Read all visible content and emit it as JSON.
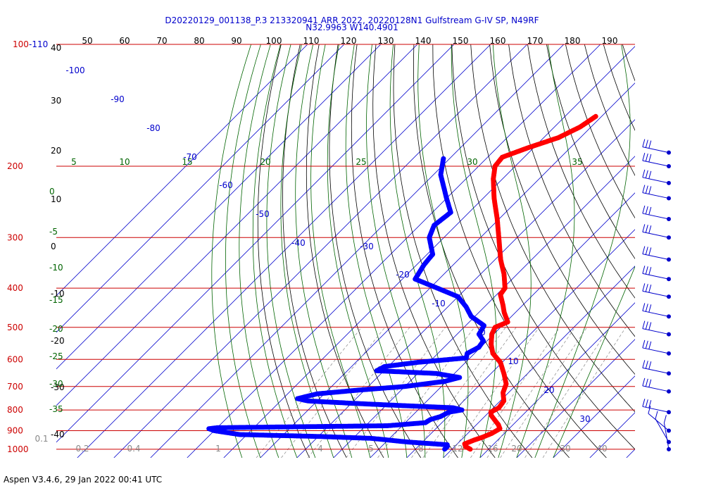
{
  "header": {
    "title_line1": "D20220129_001138_P.3 213320941 ARR 2022, 20220128N1 Gulfstream G-IV SP, N49RF",
    "title_line2": "N32.9963 W140.4901"
  },
  "footer": {
    "text": "Aspen V3.4.6, 29 Jan 2022  00:41 UTC"
  },
  "colors": {
    "isobar": "#cc0000",
    "temperature": "#ff0000",
    "dewpoint": "#0000ff",
    "isotherm": "#0000cc",
    "dry_adiabat": "#000000",
    "moist_adiabat": "#006400",
    "mixing_ratio": "#888888",
    "wind_barb": "#0000cc"
  },
  "chart_data": {
    "type": "skew-t",
    "pressure_levels": [
      {
        "value": 100,
        "label": "100"
      },
      {
        "value": 200,
        "label": "200"
      },
      {
        "value": 300,
        "label": "300"
      },
      {
        "value": 400,
        "label": "400"
      },
      {
        "value": 500,
        "label": "500"
      },
      {
        "value": 600,
        "label": "600"
      },
      {
        "value": 700,
        "label": "700"
      },
      {
        "value": 800,
        "label": "800"
      },
      {
        "value": 900,
        "label": "900"
      },
      {
        "value": 1000,
        "label": "1000"
      }
    ],
    "top_label_suffix": "-110",
    "top_axis": [
      "50",
      "60",
      "70",
      "80",
      "90",
      "100",
      "110",
      "120",
      "130",
      "140",
      "150",
      "160",
      "170",
      "180",
      "190"
    ],
    "left_dry_labels": [
      "40",
      "30",
      "20",
      "10",
      "0",
      "-10",
      "-20",
      "-30",
      "-40"
    ],
    "left_moist_labels": [
      "0",
      "-5",
      "-10",
      "-15",
      "-20",
      "-25",
      "-30",
      "-35"
    ],
    "moist_top_labels": [
      "5",
      "10",
      "15",
      "20",
      "25",
      "30",
      "35"
    ],
    "isotherm_labels": [
      "-100",
      "-90",
      "-80",
      "-70",
      "-60",
      "-50",
      "-40",
      "-30",
      "-20",
      "-10",
      "0",
      "10",
      "20",
      "30"
    ],
    "mixing_ratio_labels": [
      "0.1",
      "0.2",
      "0.4",
      "1",
      "4",
      "5",
      "8",
      "12",
      "16",
      "20",
      "30",
      "40"
    ],
    "temperature_profile": [
      [
        1000,
        15.0
      ],
      [
        985,
        13.0
      ],
      [
        970,
        12.0
      ],
      [
        950,
        13.5
      ],
      [
        935,
        15.0
      ],
      [
        915,
        16.5
      ],
      [
        890,
        17.5
      ],
      [
        870,
        16.0
      ],
      [
        850,
        14.0
      ],
      [
        825,
        11.5
      ],
      [
        810,
        10.5
      ],
      [
        790,
        11.5
      ],
      [
        760,
        11.0
      ],
      [
        725,
        8.5
      ],
      [
        690,
        7.0
      ],
      [
        650,
        3.5
      ],
      [
        610,
        -0.5
      ],
      [
        580,
        -5.0
      ],
      [
        550,
        -8.0
      ],
      [
        520,
        -10.5
      ],
      [
        500,
        -11.5
      ],
      [
        485,
        -9.5
      ],
      [
        460,
        -13.0
      ],
      [
        440,
        -15.5
      ],
      [
        415,
        -19.0
      ],
      [
        400,
        -19.5
      ],
      [
        370,
        -23.5
      ],
      [
        340,
        -28.5
      ],
      [
        300,
        -35.0
      ],
      [
        270,
        -40.5
      ],
      [
        240,
        -47.0
      ],
      [
        215,
        -52.5
      ],
      [
        200,
        -55.5
      ],
      [
        190,
        -56.0
      ],
      [
        180,
        -51.5
      ],
      [
        170,
        -46.0
      ],
      [
        160,
        -43.0
      ],
      [
        150,
        -41.5
      ]
    ],
    "dewpoint_profile": [
      [
        1000,
        8.0
      ],
      [
        985,
        8.0
      ],
      [
        975,
        7.5
      ],
      [
        960,
        -4.0
      ],
      [
        940,
        -15.0
      ],
      [
        930,
        -30.0
      ],
      [
        920,
        -52.0
      ],
      [
        910,
        -56.0
      ],
      [
        900,
        -60.0
      ],
      [
        890,
        -62.0
      ],
      [
        885,
        -60.0
      ],
      [
        875,
        -14.0
      ],
      [
        860,
        -4.5
      ],
      [
        845,
        -4.0
      ],
      [
        830,
        -2.0
      ],
      [
        810,
        -1.0
      ],
      [
        800,
        2.0
      ],
      [
        790,
        -1.0
      ],
      [
        780,
        -16.0
      ],
      [
        770,
        -30.0
      ],
      [
        760,
        -42.5
      ],
      [
        750,
        -46.0
      ],
      [
        730,
        -42.0
      ],
      [
        715,
        -32.0
      ],
      [
        700,
        -20.0
      ],
      [
        680,
        -10.5
      ],
      [
        665,
        -7.5
      ],
      [
        650,
        -15.0
      ],
      [
        640,
        -32.0
      ],
      [
        625,
        -31.0
      ],
      [
        610,
        -23.0
      ],
      [
        595,
        -11.0
      ],
      [
        580,
        -12.0
      ],
      [
        560,
        -10.5
      ],
      [
        540,
        -11.0
      ],
      [
        520,
        -14.0
      ],
      [
        495,
        -15.0
      ],
      [
        470,
        -21.0
      ],
      [
        445,
        -25.0
      ],
      [
        420,
        -30.0
      ],
      [
        400,
        -38.0
      ],
      [
        380,
        -46.5
      ],
      [
        350,
        -48.0
      ],
      [
        330,
        -48.5
      ],
      [
        300,
        -54.0
      ],
      [
        280,
        -56.0
      ],
      [
        260,
        -55.0
      ],
      [
        240,
        -60.0
      ],
      [
        210,
        -68.0
      ],
      [
        190,
        -72.0
      ]
    ],
    "wind_barb_levels": [
      185,
      200,
      220,
      240,
      270,
      300,
      340,
      380,
      420,
      470,
      520,
      580,
      650,
      720,
      810,
      900,
      960,
      1000
    ],
    "xlabel": "",
    "ylabel": ""
  }
}
